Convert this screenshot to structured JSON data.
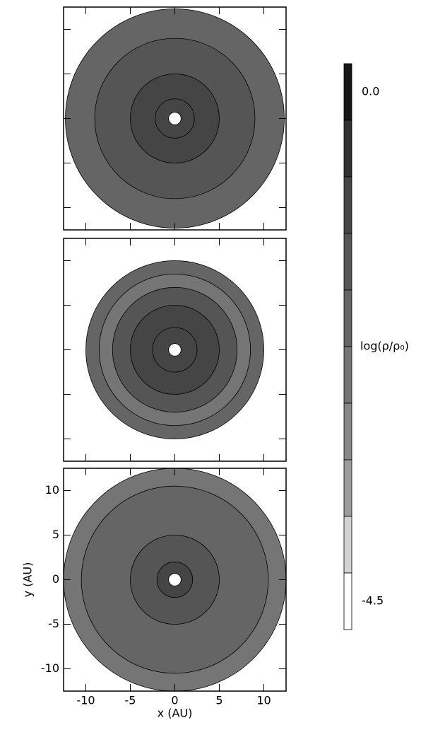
{
  "chart_data": [
    {
      "type": "contour",
      "xlim": [
        -12.5,
        12.5
      ],
      "ylim": [
        -12.5,
        12.5
      ],
      "rings": [
        {
          "r": 12.3,
          "level": -2
        },
        {
          "r": 9,
          "level": -1.5
        },
        {
          "r": 5,
          "level": -1
        },
        {
          "r": 2.2,
          "level": -1
        },
        {
          "r": 0.7,
          "level": -4.5
        }
      ]
    },
    {
      "type": "contour",
      "xlim": [
        -12.5,
        12.5
      ],
      "ylim": [
        -12.5,
        12.5
      ],
      "rings": [
        {
          "r": 10,
          "level": -2
        },
        {
          "r": 8.5,
          "level": -2.5
        },
        {
          "r": 7,
          "level": -1.5
        },
        {
          "r": 5,
          "level": -1
        },
        {
          "r": 2.5,
          "level": -1
        },
        {
          "r": 0.7,
          "level": -4.5
        }
      ]
    },
    {
      "type": "contour",
      "xlim": [
        -12.5,
        12.5
      ],
      "ylim": [
        -12.5,
        12.5
      ],
      "rings": [
        {
          "r": 12.5,
          "level": -2.5
        },
        {
          "r": 10.5,
          "level": -2
        },
        {
          "r": 5,
          "level": -1.5
        },
        {
          "r": 2,
          "level": -1
        },
        {
          "r": 0.7,
          "level": -4.5
        }
      ],
      "xticks": [
        -10,
        -5,
        0,
        5,
        10
      ],
      "yticks": [
        -10,
        -5,
        0,
        5,
        10
      ],
      "xlabel": "x (AU)",
      "ylabel": "y (AU)"
    },
    {
      "type": "colorbar",
      "ylim": [
        -4.75,
        0.25
      ],
      "levels": [
        0,
        -0.5,
        -1,
        -1.5,
        -2,
        -2.5,
        -3,
        -3.5,
        -4,
        -4.5
      ],
      "colors": [
        "#161616",
        "#303030",
        "#454545",
        "#555555",
        "#656565",
        "#757575",
        "#878787",
        "#9c9c9c",
        "#d2d2d2",
        "#ffffff"
      ],
      "ticks": [
        {
          "value": 0,
          "label": "0.0"
        },
        -4.5
      ],
      "label": "log(ρ/ρ₀)"
    }
  ]
}
